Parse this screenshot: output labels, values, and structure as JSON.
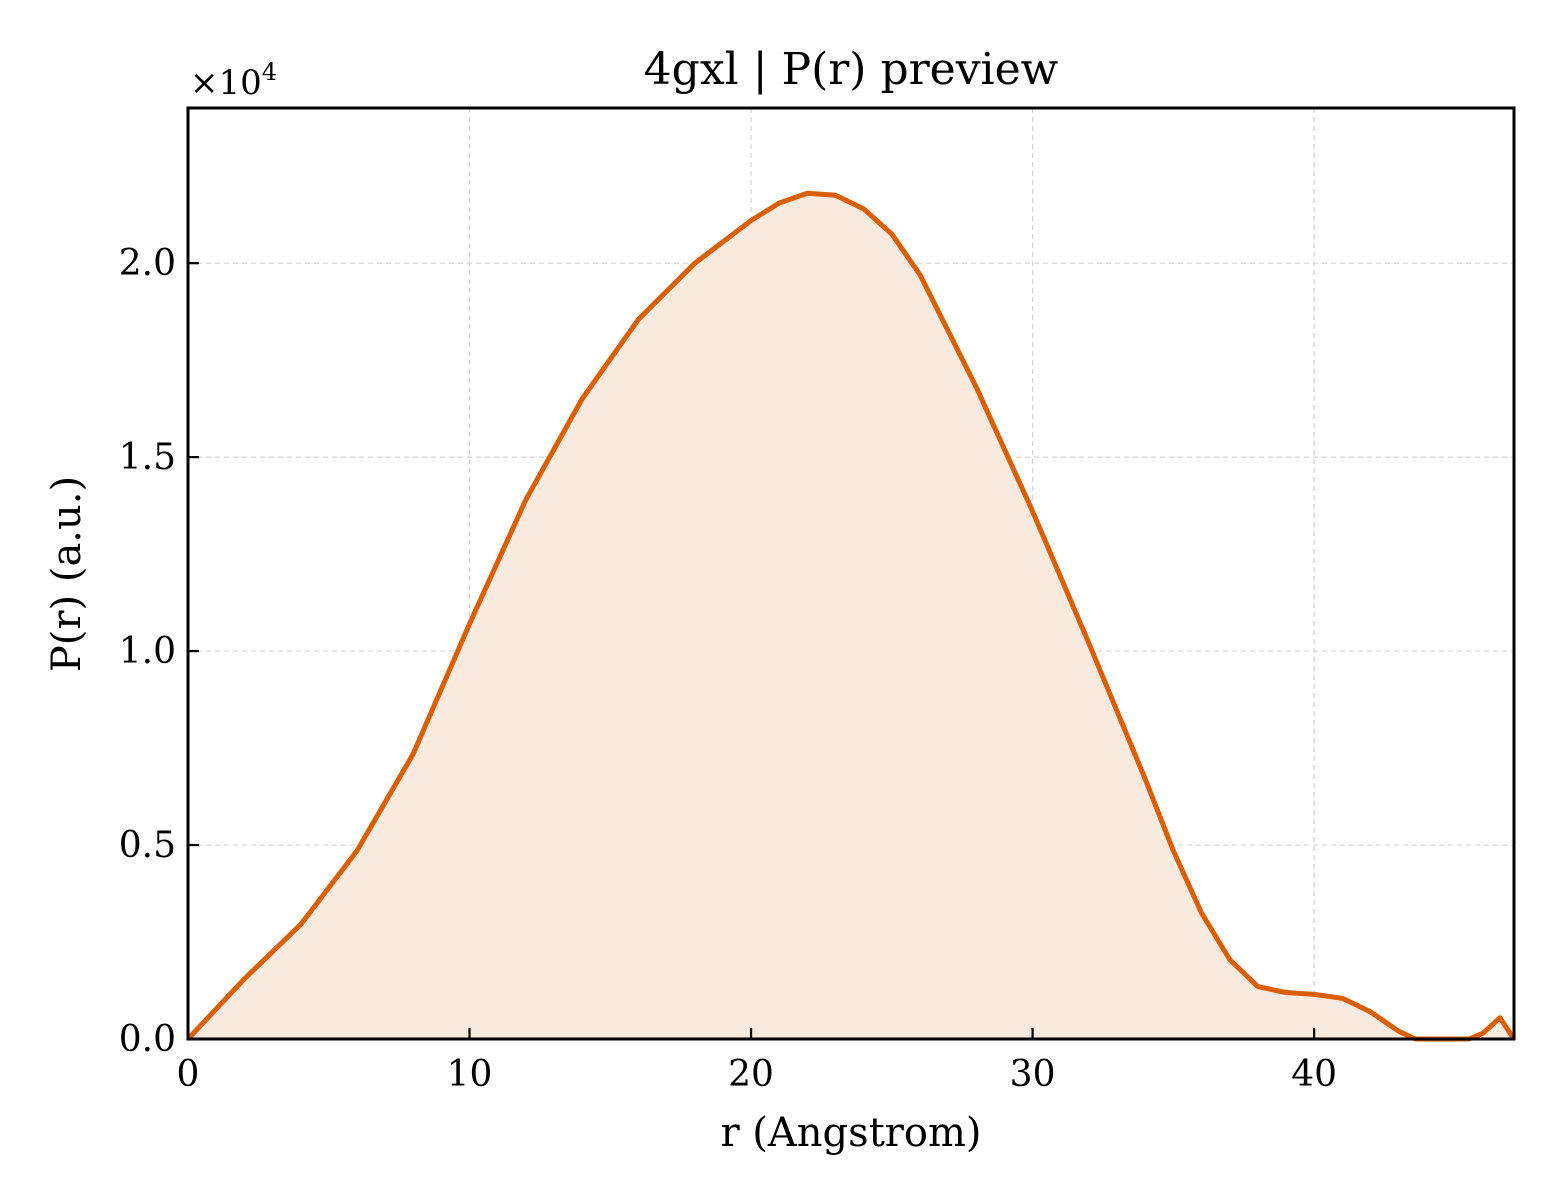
{
  "chart_data": {
    "type": "area",
    "title": "4gxl | P(r) preview",
    "xlabel": "r (Angstrom)",
    "ylabel": "P(r) (a.u.)",
    "y_multiplier": "×10",
    "y_multiplier_exp": "4",
    "xlim": [
      0,
      47.1
    ],
    "ylim": [
      0,
      24000
    ],
    "xticks": [
      0,
      10,
      20,
      30,
      40
    ],
    "xtick_labels": [
      "0",
      "10",
      "20",
      "30",
      "40"
    ],
    "yticks": [
      0,
      5000,
      10000,
      15000,
      20000
    ],
    "ytick_labels": [
      "0.0",
      "0.5",
      "1.0",
      "1.5",
      "2.0"
    ],
    "grid": true,
    "colors": {
      "line": "#d95f02",
      "fill": "#f9eadf"
    },
    "series": [
      {
        "x": [
          0,
          2,
          4,
          6,
          8,
          10,
          12,
          14,
          16,
          18,
          20,
          21,
          22,
          23,
          24,
          25,
          26,
          28,
          30,
          32,
          34,
          35,
          36,
          37,
          38,
          39,
          40,
          41,
          42,
          43,
          43.6,
          44,
          45,
          45.5,
          46,
          46.6,
          47.1
        ],
        "y": [
          0,
          1550,
          2950,
          4850,
          7350,
          10700,
          13900,
          16500,
          18550,
          20000,
          21100,
          21550,
          21800,
          21750,
          21400,
          20750,
          19700,
          16800,
          13600,
          10200,
          6700,
          4850,
          3250,
          2050,
          1350,
          1200,
          1150,
          1050,
          700,
          200,
          0,
          0,
          0,
          0,
          150,
          550,
          0
        ]
      }
    ]
  }
}
